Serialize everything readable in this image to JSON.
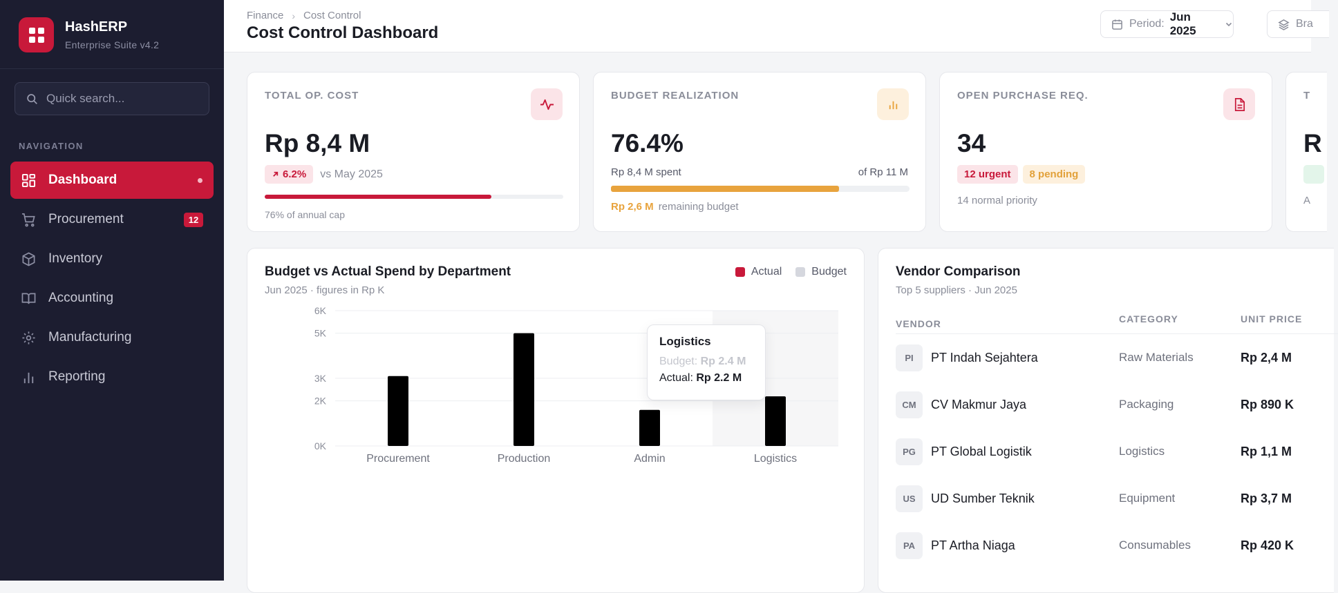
{
  "brand": {
    "name": "HashERP",
    "subtitle": "Enterprise Suite v4.2"
  },
  "search": {
    "placeholder": "Quick search..."
  },
  "nav": {
    "heading": "NAVIGATION",
    "items": [
      {
        "label": "Dashboard",
        "icon": "dashboard-icon",
        "active": true
      },
      {
        "label": "Procurement",
        "icon": "cart-icon",
        "badge": "12"
      },
      {
        "label": "Inventory",
        "icon": "box-icon"
      },
      {
        "label": "Accounting",
        "icon": "book-icon"
      },
      {
        "label": "Manufacturing",
        "icon": "gear-icon"
      },
      {
        "label": "Reporting",
        "icon": "bar-chart-icon"
      }
    ]
  },
  "header": {
    "breadcrumb": [
      "Finance",
      "Cost Control"
    ],
    "title": "Cost Control Dashboard",
    "period_label": "Period:",
    "period_value": "Jun 2025",
    "branch_label": "Bra"
  },
  "kpis": {
    "total_cost": {
      "label": "TOTAL OP. COST",
      "value": "Rp 8,4 M",
      "change": "6.2%",
      "compare": "vs May 2025",
      "progress": 0.76,
      "caption": "76% of annual cap"
    },
    "budget": {
      "label": "BUDGET REALIZATION",
      "value": "76.4%",
      "spent": "Rp 8,4 M spent",
      "of_total": "of Rp 11 M",
      "progress": 0.764,
      "remaining_value": "Rp 2,6 M",
      "remaining_text": "remaining budget"
    },
    "purchase": {
      "label": "OPEN PURCHASE REQ.",
      "value": "34",
      "urgent": "12 urgent",
      "pending": "8 pending",
      "note": "14 normal priority"
    },
    "fourth": {
      "label": "T",
      "value": "R",
      "note": "A"
    }
  },
  "spend_chart": {
    "title": "Budget vs Actual Spend by Department",
    "subtitle": "Jun 2025 · figures in Rp K",
    "legend": [
      {
        "name": "Actual",
        "color": "#c8193a"
      },
      {
        "name": "Budget",
        "color": "#d5d7de"
      }
    ],
    "tooltip": {
      "title": "Logistics",
      "budget_label": "Budget:",
      "budget_value": "Rp 2.4 M",
      "actual_label": "Actual:",
      "actual_value": "Rp 2.2 M"
    }
  },
  "chart_data": {
    "type": "bar",
    "title": "Budget vs Actual Spend by Department",
    "subtitle": "Jun 2025 · figures in Rp K",
    "categories": [
      "Procurement",
      "Production",
      "Admin",
      "Logistics"
    ],
    "series": [
      {
        "name": "Actual",
        "values": [
          3100,
          5000,
          1600,
          2200
        ]
      },
      {
        "name": "Budget",
        "values": [
          null,
          null,
          null,
          2400
        ]
      }
    ],
    "y_ticks": [
      {
        "value": 0,
        "label": "0K"
      },
      {
        "value": 2000,
        "label": "2K"
      },
      {
        "value": 3000,
        "label": "3K"
      },
      {
        "value": 5000,
        "label": "5K"
      },
      {
        "value": 6000,
        "label": "6K"
      }
    ],
    "ylim": [
      0,
      6000
    ],
    "highlighted_category": "Logistics",
    "grid": true,
    "legend_position": "top-right"
  },
  "vendors": {
    "title": "Vendor Comparison",
    "subtitle": "Top 5 suppliers · Jun 2025",
    "columns": [
      "VENDOR",
      "CATEGORY",
      "UNIT PRICE"
    ],
    "rows": [
      {
        "initials": "PI",
        "name": "PT Indah Sejahtera",
        "category": "Raw Materials",
        "price": "Rp 2,4 M"
      },
      {
        "initials": "CM",
        "name": "CV Makmur Jaya",
        "category": "Packaging",
        "price": "Rp 890 K"
      },
      {
        "initials": "PG",
        "name": "PT Global Logistik",
        "category": "Logistics",
        "price": "Rp 1,1 M"
      },
      {
        "initials": "US",
        "name": "UD Sumber Teknik",
        "category": "Equipment",
        "price": "Rp 3,7 M"
      },
      {
        "initials": "PA",
        "name": "PT Artha Niaga",
        "category": "Consumables",
        "price": "Rp 420 K"
      }
    ]
  },
  "colors": {
    "accent": "#c8193a",
    "amber": "#e8a33d",
    "sidebar": "#1c1d30"
  }
}
